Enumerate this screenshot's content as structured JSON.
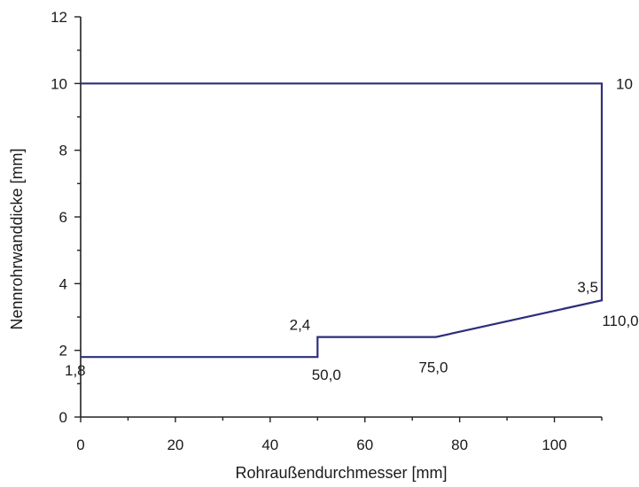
{
  "chart_data": {
    "type": "line",
    "xlabel": "Rohraußendurchmesser [mm]",
    "ylabel": "Nennrohrwanddicke [mm]",
    "xlim": [
      0,
      110
    ],
    "ylim": [
      0,
      12
    ],
    "x_ticks": [
      0,
      20,
      40,
      60,
      80,
      100
    ],
    "y_ticks": [
      0,
      2,
      4,
      6,
      8,
      10,
      12
    ],
    "grid": false,
    "series": [
      {
        "color": "#2c2f7a",
        "points": [
          {
            "x": 0,
            "y": 1.8
          },
          {
            "x": 50,
            "y": 1.8
          },
          {
            "x": 50,
            "y": 2.4
          },
          {
            "x": 75,
            "y": 2.4
          },
          {
            "x": 110,
            "y": 3.5
          },
          {
            "x": 110,
            "y": 10
          },
          {
            "x": 0,
            "y": 10
          }
        ]
      }
    ],
    "annotations": [
      {
        "text": "1,8",
        "x": 0,
        "y": 1.8
      },
      {
        "text": "2,4",
        "x": 50,
        "y": 2.4
      },
      {
        "text": "50,0",
        "x": 50,
        "y": 1.8
      },
      {
        "text": "75,0",
        "x": 75,
        "y": 2.4
      },
      {
        "text": "3,5",
        "x": 110,
        "y": 3.5
      },
      {
        "text": "110,0",
        "x": 110,
        "y": 3.5
      },
      {
        "text": "10",
        "x": 110,
        "y": 10
      }
    ]
  }
}
